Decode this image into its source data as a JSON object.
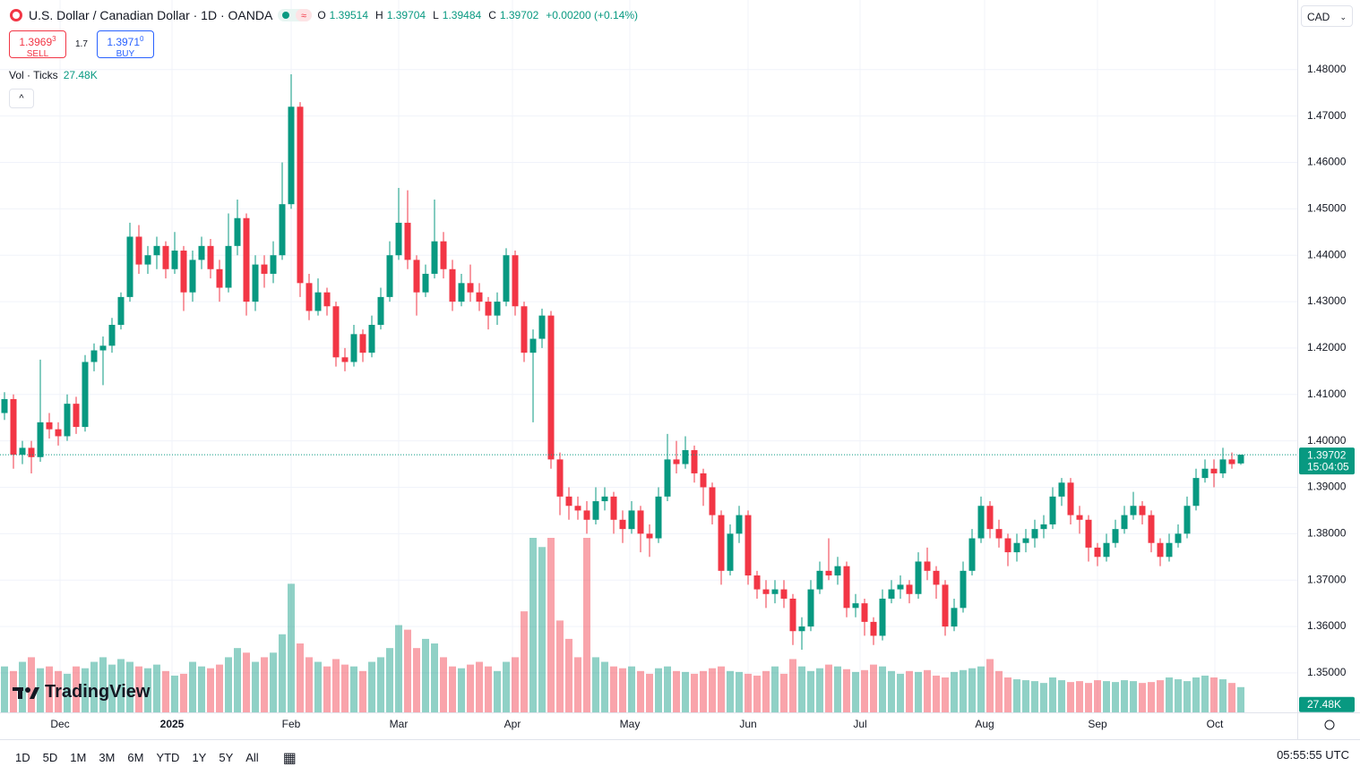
{
  "chart_data": {
    "type": "candlestick",
    "title": "U.S. Dollar / Canadian Dollar · 1D · OANDA",
    "legend_labels": [
      "O",
      "H",
      "L",
      "C"
    ],
    "change": "+0.00200 (+0.14%)",
    "up_color": "#089981",
    "down_color": "#f23645",
    "ylim": [
      1.3415,
      1.495
    ],
    "yticks": [
      {
        "value": 1.35,
        "label": "1.35000"
      },
      {
        "value": 1.36,
        "label": "1.36000"
      },
      {
        "value": 1.37,
        "label": "1.37000"
      },
      {
        "value": 1.38,
        "label": "1.38000"
      },
      {
        "value": 1.39,
        "label": "1.39000"
      },
      {
        "value": 1.4,
        "label": "1.40000"
      },
      {
        "value": 1.41,
        "label": "1.41000"
      },
      {
        "value": 1.42,
        "label": "1.42000"
      },
      {
        "value": 1.43,
        "label": "1.43000"
      },
      {
        "value": 1.44,
        "label": "1.44000"
      },
      {
        "value": 1.45,
        "label": "1.45000"
      },
      {
        "value": 1.46,
        "label": "1.46000"
      },
      {
        "value": 1.47,
        "label": "1.47000"
      },
      {
        "value": 1.48,
        "label": "1.48000"
      }
    ],
    "xticks": [
      {
        "value": 6.2,
        "label": "Dec"
      },
      {
        "value": 18.7,
        "label": "2025"
      },
      {
        "value": 32,
        "label": "Feb"
      },
      {
        "value": 44,
        "label": "Mar"
      },
      {
        "value": 56.7,
        "label": "Apr"
      },
      {
        "value": 69.8,
        "label": "May"
      },
      {
        "value": 83,
        "label": "Jun"
      },
      {
        "value": 95.5,
        "label": "Jul"
      },
      {
        "value": 109.4,
        "label": "Aug"
      },
      {
        "value": 122,
        "label": "Sep"
      },
      {
        "value": 135.1,
        "label": "Oct"
      }
    ],
    "grid": true,
    "ohlc": [
      [
        1.406,
        1.4105,
        1.4045,
        1.409
      ],
      [
        1.409,
        1.41,
        1.394,
        1.397
      ],
      [
        1.397,
        1.4,
        1.395,
        1.3985
      ],
      [
        1.3985,
        1.4,
        1.393,
        1.3965
      ],
      [
        1.3965,
        1.4175,
        1.3955,
        1.404
      ],
      [
        1.404,
        1.406,
        1.4005,
        1.4025
      ],
      [
        1.4025,
        1.404,
        1.399,
        1.401
      ],
      [
        1.401,
        1.41,
        1.4,
        1.408
      ],
      [
        1.408,
        1.4095,
        1.4015,
        1.403
      ],
      [
        1.403,
        1.4185,
        1.402,
        1.417
      ],
      [
        1.417,
        1.421,
        1.415,
        1.4195
      ],
      [
        1.4195,
        1.4225,
        1.412,
        1.4205
      ],
      [
        1.4205,
        1.4265,
        1.419,
        1.425
      ],
      [
        1.425,
        1.432,
        1.424,
        1.431
      ],
      [
        1.431,
        1.447,
        1.43,
        1.444
      ],
      [
        1.444,
        1.4465,
        1.436,
        1.438
      ],
      [
        1.438,
        1.442,
        1.436,
        1.44
      ],
      [
        1.44,
        1.444,
        1.437,
        1.442
      ],
      [
        1.442,
        1.443,
        1.435,
        1.437
      ],
      [
        1.437,
        1.445,
        1.436,
        1.441
      ],
      [
        1.441,
        1.442,
        1.428,
        1.432
      ],
      [
        1.432,
        1.441,
        1.43,
        1.439
      ],
      [
        1.439,
        1.444,
        1.437,
        1.442
      ],
      [
        1.442,
        1.4435,
        1.435,
        1.437
      ],
      [
        1.437,
        1.439,
        1.43,
        1.433
      ],
      [
        1.433,
        1.449,
        1.432,
        1.442
      ],
      [
        1.442,
        1.452,
        1.44,
        1.448
      ],
      [
        1.448,
        1.449,
        1.427,
        1.43
      ],
      [
        1.43,
        1.44,
        1.428,
        1.438
      ],
      [
        1.438,
        1.44,
        1.433,
        1.436
      ],
      [
        1.436,
        1.443,
        1.434,
        1.44
      ],
      [
        1.44,
        1.46,
        1.439,
        1.451
      ],
      [
        1.451,
        1.479,
        1.45,
        1.472
      ],
      [
        1.472,
        1.473,
        1.431,
        1.434
      ],
      [
        1.434,
        1.436,
        1.426,
        1.428
      ],
      [
        1.428,
        1.435,
        1.427,
        1.432
      ],
      [
        1.432,
        1.433,
        1.427,
        1.429
      ],
      [
        1.429,
        1.43,
        1.416,
        1.418
      ],
      [
        1.418,
        1.42,
        1.415,
        1.417
      ],
      [
        1.417,
        1.425,
        1.416,
        1.423
      ],
      [
        1.423,
        1.424,
        1.417,
        1.419
      ],
      [
        1.419,
        1.427,
        1.418,
        1.425
      ],
      [
        1.425,
        1.433,
        1.424,
        1.431
      ],
      [
        1.431,
        1.443,
        1.43,
        1.44
      ],
      [
        1.44,
        1.4545,
        1.439,
        1.447
      ],
      [
        1.447,
        1.454,
        1.437,
        1.439
      ],
      [
        1.439,
        1.44,
        1.427,
        1.432
      ],
      [
        1.432,
        1.438,
        1.431,
        1.436
      ],
      [
        1.436,
        1.452,
        1.435,
        1.443
      ],
      [
        1.443,
        1.445,
        1.435,
        1.437
      ],
      [
        1.437,
        1.439,
        1.428,
        1.43
      ],
      [
        1.43,
        1.436,
        1.429,
        1.434
      ],
      [
        1.434,
        1.438,
        1.43,
        1.432
      ],
      [
        1.432,
        1.434,
        1.428,
        1.43
      ],
      [
        1.43,
        1.431,
        1.424,
        1.427
      ],
      [
        1.427,
        1.432,
        1.425,
        1.43
      ],
      [
        1.43,
        1.4415,
        1.429,
        1.44
      ],
      [
        1.44,
        1.441,
        1.427,
        1.429
      ],
      [
        1.429,
        1.43,
        1.417,
        1.419
      ],
      [
        1.419,
        1.424,
        1.404,
        1.422
      ],
      [
        1.422,
        1.4285,
        1.42,
        1.427
      ],
      [
        1.427,
        1.428,
        1.394,
        1.396
      ],
      [
        1.396,
        1.3975,
        1.384,
        1.388
      ],
      [
        1.388,
        1.39,
        1.383,
        1.386
      ],
      [
        1.386,
        1.388,
        1.383,
        1.385
      ],
      [
        1.385,
        1.387,
        1.38,
        1.383
      ],
      [
        1.383,
        1.39,
        1.382,
        1.387
      ],
      [
        1.387,
        1.39,
        1.385,
        1.388
      ],
      [
        1.388,
        1.389,
        1.38,
        1.383
      ],
      [
        1.383,
        1.385,
        1.378,
        1.381
      ],
      [
        1.381,
        1.387,
        1.38,
        1.385
      ],
      [
        1.385,
        1.386,
        1.376,
        1.38
      ],
      [
        1.38,
        1.382,
        1.375,
        1.379
      ],
      [
        1.379,
        1.39,
        1.378,
        1.388
      ],
      [
        1.388,
        1.4015,
        1.387,
        1.396
      ],
      [
        1.396,
        1.4,
        1.393,
        1.395
      ],
      [
        1.395,
        1.401,
        1.394,
        1.398
      ],
      [
        1.398,
        1.399,
        1.391,
        1.393
      ],
      [
        1.393,
        1.394,
        1.386,
        1.39
      ],
      [
        1.39,
        1.391,
        1.382,
        1.384
      ],
      [
        1.384,
        1.385,
        1.369,
        1.372
      ],
      [
        1.372,
        1.382,
        1.371,
        1.38
      ],
      [
        1.38,
        1.386,
        1.378,
        1.384
      ],
      [
        1.384,
        1.385,
        1.369,
        1.371
      ],
      [
        1.371,
        1.372,
        1.366,
        1.368
      ],
      [
        1.368,
        1.37,
        1.364,
        1.367
      ],
      [
        1.367,
        1.37,
        1.365,
        1.368
      ],
      [
        1.368,
        1.37,
        1.364,
        1.366
      ],
      [
        1.366,
        1.367,
        1.356,
        1.359
      ],
      [
        1.359,
        1.362,
        1.355,
        1.36
      ],
      [
        1.36,
        1.37,
        1.359,
        1.368
      ],
      [
        1.368,
        1.374,
        1.367,
        1.372
      ],
      [
        1.372,
        1.379,
        1.37,
        1.371
      ],
      [
        1.371,
        1.375,
        1.369,
        1.373
      ],
      [
        1.373,
        1.374,
        1.362,
        1.364
      ],
      [
        1.364,
        1.367,
        1.362,
        1.365
      ],
      [
        1.365,
        1.366,
        1.358,
        1.361
      ],
      [
        1.361,
        1.362,
        1.356,
        1.358
      ],
      [
        1.358,
        1.368,
        1.357,
        1.366
      ],
      [
        1.366,
        1.37,
        1.365,
        1.368
      ],
      [
        1.368,
        1.371,
        1.366,
        1.369
      ],
      [
        1.369,
        1.37,
        1.365,
        1.367
      ],
      [
        1.367,
        1.376,
        1.366,
        1.374
      ],
      [
        1.374,
        1.377,
        1.37,
        1.372
      ],
      [
        1.372,
        1.373,
        1.366,
        1.369
      ],
      [
        1.369,
        1.37,
        1.358,
        1.36
      ],
      [
        1.36,
        1.366,
        1.359,
        1.364
      ],
      [
        1.364,
        1.374,
        1.363,
        1.372
      ],
      [
        1.372,
        1.381,
        1.371,
        1.379
      ],
      [
        1.379,
        1.388,
        1.378,
        1.386
      ],
      [
        1.386,
        1.387,
        1.379,
        1.381
      ],
      [
        1.381,
        1.383,
        1.377,
        1.379
      ],
      [
        1.379,
        1.38,
        1.373,
        1.376
      ],
      [
        1.376,
        1.38,
        1.374,
        1.378
      ],
      [
        1.378,
        1.381,
        1.376,
        1.379
      ],
      [
        1.379,
        1.383,
        1.377,
        1.381
      ],
      [
        1.381,
        1.384,
        1.379,
        1.382
      ],
      [
        1.382,
        1.39,
        1.381,
        1.388
      ],
      [
        1.388,
        1.392,
        1.386,
        1.391
      ],
      [
        1.391,
        1.392,
        1.382,
        1.384
      ],
      [
        1.384,
        1.386,
        1.38,
        1.383
      ],
      [
        1.383,
        1.384,
        1.374,
        1.377
      ],
      [
        1.377,
        1.378,
        1.373,
        1.375
      ],
      [
        1.375,
        1.38,
        1.374,
        1.378
      ],
      [
        1.378,
        1.383,
        1.377,
        1.381
      ],
      [
        1.381,
        1.386,
        1.38,
        1.384
      ],
      [
        1.384,
        1.389,
        1.383,
        1.386
      ],
      [
        1.386,
        1.387,
        1.382,
        1.384
      ],
      [
        1.384,
        1.385,
        1.376,
        1.378
      ],
      [
        1.378,
        1.379,
        1.373,
        1.375
      ],
      [
        1.375,
        1.38,
        1.374,
        1.378
      ],
      [
        1.378,
        1.382,
        1.377,
        1.38
      ],
      [
        1.38,
        1.388,
        1.379,
        1.386
      ],
      [
        1.386,
        1.394,
        1.385,
        1.392
      ],
      [
        1.392,
        1.396,
        1.391,
        1.394
      ],
      [
        1.394,
        1.396,
        1.39,
        1.393
      ],
      [
        1.393,
        1.3985,
        1.392,
        1.396
      ],
      [
        1.396,
        1.3975,
        1.394,
        1.395
      ],
      [
        1.39514,
        1.39704,
        1.39484,
        1.39702
      ]
    ],
    "volume": [
      50000,
      45000,
      55000,
      60000,
      48000,
      50000,
      45000,
      42000,
      50000,
      48000,
      55000,
      60000,
      52000,
      58000,
      55000,
      50000,
      48000,
      52000,
      45000,
      40000,
      42000,
      55000,
      50000,
      48000,
      52000,
      60000,
      70000,
      65000,
      55000,
      60000,
      65000,
      85000,
      140000,
      75000,
      60000,
      55000,
      50000,
      58000,
      52000,
      50000,
      45000,
      55000,
      60000,
      70000,
      95000,
      90000,
      70000,
      80000,
      75000,
      60000,
      50000,
      48000,
      52000,
      55000,
      50000,
      45000,
      55000,
      60000,
      110000,
      190000,
      180000,
      190000,
      100000,
      80000,
      60000,
      190000,
      60000,
      55000,
      50000,
      48000,
      50000,
      45000,
      42000,
      48000,
      50000,
      45000,
      44000,
      42000,
      45000,
      48000,
      50000,
      45000,
      44000,
      42000,
      40000,
      45000,
      50000,
      42000,
      58000,
      50000,
      45000,
      48000,
      52000,
      50000,
      47000,
      44000,
      46000,
      52000,
      50000,
      45000,
      42000,
      45000,
      44000,
      46000,
      40000,
      38000,
      44000,
      46000,
      48000,
      50000,
      58000,
      45000,
      38000,
      36000,
      35000,
      34000,
      32000,
      38000,
      35000,
      33000,
      34000,
      32000,
      35000,
      34000,
      33000,
      35000,
      34000,
      32000,
      33000,
      35000,
      38000,
      36000,
      34000,
      38000,
      40000,
      38000,
      36000,
      32000,
      27480
    ],
    "volume_label": "Vol · Ticks",
    "volume_value_label": "27.48K",
    "countdown": "15:04:05"
  },
  "trade": {
    "sell_price": "1.3969",
    "sell_pip": "3",
    "sell_label": "SELL",
    "spread": "1.7",
    "buy_price": "1.3971",
    "buy_pip": "0",
    "buy_label": "BUY"
  },
  "currency": "CAD",
  "logo": "TradingView",
  "ranges": [
    "1D",
    "5D",
    "1M",
    "3M",
    "6M",
    "YTD",
    "1Y",
    "5Y",
    "All"
  ],
  "clock": "05:55:55 UTC"
}
